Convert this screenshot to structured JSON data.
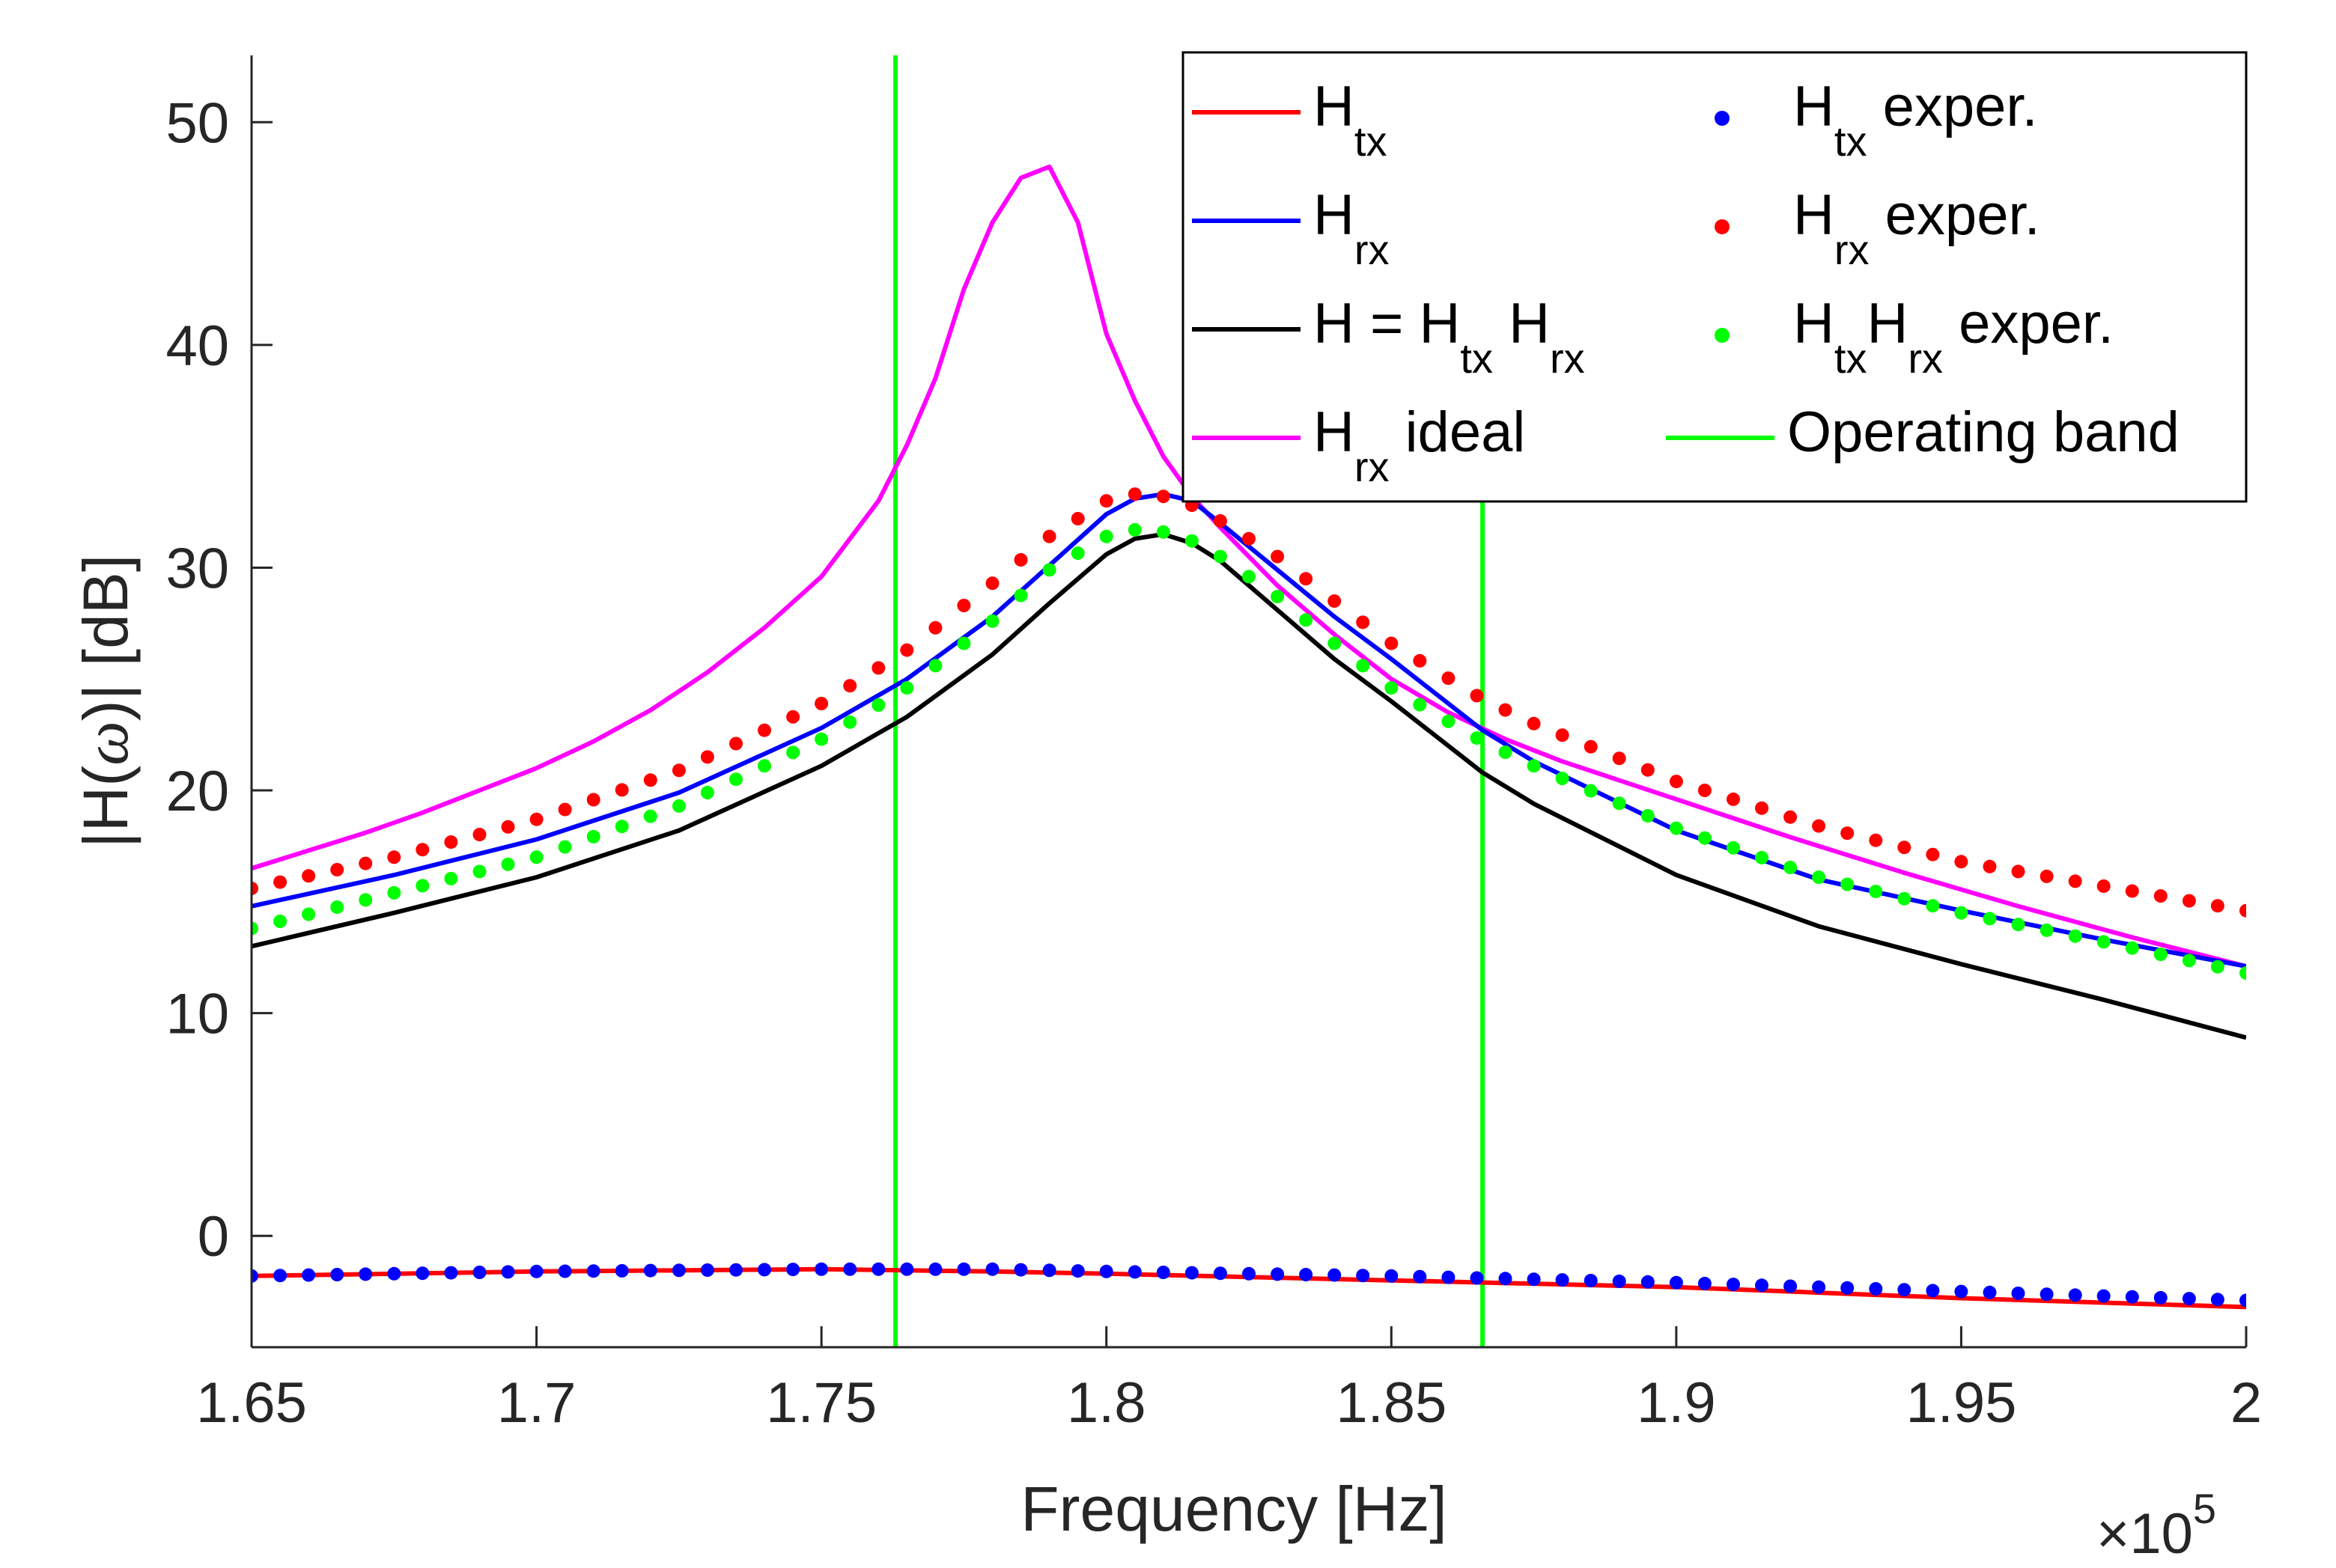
{
  "chart_data": {
    "type": "line",
    "title": "",
    "xlabel": "Frequency [Hz]",
    "ylabel_parts": [
      "|H(",
      "ω",
      ")| [dB]"
    ],
    "x_multiplier": {
      "base": "×10",
      "exponent": "5"
    },
    "xlim": [
      1.65,
      2.0
    ],
    "ylim": [
      -5,
      53
    ],
    "x_ticks": [
      1.65,
      1.7,
      1.75,
      1.8,
      1.85,
      1.9,
      1.95,
      2.0
    ],
    "x_tick_labels": [
      "1.65",
      "1.7",
      "1.75",
      "1.8",
      "1.85",
      "1.9",
      "1.95",
      "2"
    ],
    "y_ticks": [
      0,
      10,
      20,
      30,
      40,
      50
    ],
    "y_tick_labels": [
      "0",
      "10",
      "20",
      "30",
      "40",
      "50"
    ],
    "grid": false,
    "legend_position": "top-right",
    "operating_band": [
      1.763,
      1.866
    ],
    "legend": [
      {
        "key": "htx",
        "sym": "line",
        "color": "#ff0000",
        "base": "H",
        "sub": "tx",
        "suffix": ""
      },
      {
        "key": "htx_exp",
        "sym": "dot",
        "color": "#0000ff",
        "base": "H",
        "sub": "tx",
        "suffix": " exper."
      },
      {
        "key": "hrx",
        "sym": "line",
        "color": "#0000ff",
        "base": "H",
        "sub": "rx",
        "suffix": ""
      },
      {
        "key": "hrx_exp",
        "sym": "dot",
        "color": "#ff0000",
        "base": "H",
        "sub": "rx",
        "suffix": " exper."
      },
      {
        "key": "h",
        "sym": "line",
        "color": "#000000",
        "base": "H = H",
        "sub": "tx",
        "mid": " H",
        "sub2": "rx",
        "suffix": ""
      },
      {
        "key": "h_exp",
        "sym": "dot",
        "color": "#00ff00",
        "base": "H",
        "sub": "tx",
        "mid": "H",
        "sub2": "rx",
        "suffix": " exper."
      },
      {
        "key": "hrx_ideal",
        "sym": "line",
        "color": "#ff00ff",
        "base": "H",
        "sub": "rx",
        "suffix": " ideal"
      },
      {
        "key": "band",
        "sym": "line",
        "color": "#00ff00",
        "base": "Operating band",
        "sub": "",
        "suffix": ""
      }
    ],
    "line_series": [
      {
        "name": "Hrx ideal",
        "color": "#ff00ff",
        "x": [
          1.65,
          1.66,
          1.67,
          1.68,
          1.69,
          1.7,
          1.71,
          1.72,
          1.73,
          1.74,
          1.75,
          1.76,
          1.765,
          1.77,
          1.775,
          1.78,
          1.785,
          1.79,
          1.795,
          1.8,
          1.805,
          1.81,
          1.815,
          1.82,
          1.83,
          1.84,
          1.85,
          1.86,
          1.87,
          1.88,
          1.9,
          1.92,
          1.94,
          1.96,
          1.98,
          2.0
        ],
        "y": [
          16.5,
          17.3,
          18.1,
          19.0,
          20.0,
          21.0,
          22.2,
          23.6,
          25.3,
          27.3,
          29.6,
          33.0,
          35.5,
          38.5,
          42.5,
          45.5,
          47.5,
          48.0,
          45.5,
          40.5,
          37.5,
          35.0,
          33.2,
          31.8,
          29.2,
          27.0,
          25.0,
          23.5,
          22.3,
          21.3,
          19.6,
          17.9,
          16.3,
          14.8,
          13.4,
          12.1
        ]
      },
      {
        "name": "Hrx",
        "color": "#0000ff",
        "x": [
          1.65,
          1.675,
          1.7,
          1.725,
          1.75,
          1.765,
          1.78,
          1.79,
          1.8,
          1.805,
          1.81,
          1.815,
          1.82,
          1.83,
          1.84,
          1.85,
          1.866,
          1.875,
          1.9,
          1.925,
          1.95,
          1.975,
          2.0
        ],
        "y": [
          14.8,
          16.2,
          17.8,
          19.9,
          22.8,
          25.0,
          27.8,
          30.1,
          32.4,
          33.1,
          33.3,
          33.0,
          32.0,
          29.9,
          27.8,
          25.9,
          22.7,
          21.3,
          18.2,
          16.0,
          14.6,
          13.3,
          12.1
        ]
      },
      {
        "name": "H = Htx Hrx",
        "color": "#000000",
        "x": [
          1.65,
          1.675,
          1.7,
          1.725,
          1.75,
          1.765,
          1.78,
          1.79,
          1.8,
          1.805,
          1.81,
          1.815,
          1.82,
          1.83,
          1.84,
          1.85,
          1.866,
          1.875,
          1.9,
          1.925,
          1.95,
          1.975,
          2.0
        ],
        "y": [
          13.0,
          14.5,
          16.1,
          18.2,
          21.1,
          23.3,
          26.1,
          28.4,
          30.6,
          31.3,
          31.5,
          31.1,
          30.3,
          28.1,
          25.9,
          24.0,
          20.8,
          19.4,
          16.2,
          13.9,
          12.2,
          10.6,
          8.9
        ]
      },
      {
        "name": "Htx",
        "color": "#ff0000",
        "x": [
          1.65,
          1.7,
          1.75,
          1.78,
          1.8,
          1.85,
          1.9,
          1.95,
          2.0
        ],
        "y": [
          -1.8,
          -1.6,
          -1.5,
          -1.6,
          -1.7,
          -2.0,
          -2.3,
          -2.8,
          -3.2
        ]
      }
    ],
    "dot_series": [
      {
        "name": "Htx exper.",
        "color": "#0000ff",
        "x": [
          1.65,
          1.7,
          1.75,
          1.78,
          1.8,
          1.85,
          1.9,
          1.95,
          2.0
        ],
        "y": [
          -1.8,
          -1.6,
          -1.5,
          -1.5,
          -1.6,
          -1.8,
          -2.1,
          -2.5,
          -2.9
        ]
      },
      {
        "name": "Hrx exper.",
        "color": "#ff0000",
        "x": [
          1.65,
          1.675,
          1.7,
          1.725,
          1.75,
          1.765,
          1.78,
          1.79,
          1.8,
          1.805,
          1.81,
          1.815,
          1.82,
          1.83,
          1.84,
          1.85,
          1.866,
          1.875,
          1.9,
          1.925,
          1.95,
          1.975,
          2.0
        ],
        "y": [
          15.6,
          17.0,
          18.7,
          20.9,
          23.9,
          26.3,
          29.3,
          31.4,
          33.0,
          33.3,
          33.2,
          32.8,
          32.1,
          30.5,
          28.5,
          26.6,
          24.1,
          23.0,
          20.4,
          18.4,
          16.8,
          15.7,
          14.6
        ]
      },
      {
        "name": "HtxHrx exper.",
        "color": "#00ff00",
        "x": [
          1.65,
          1.675,
          1.7,
          1.725,
          1.75,
          1.765,
          1.78,
          1.79,
          1.8,
          1.805,
          1.81,
          1.815,
          1.82,
          1.83,
          1.84,
          1.85,
          1.866,
          1.875,
          1.9,
          1.925,
          1.95,
          1.975,
          2.0
        ],
        "y": [
          13.8,
          15.4,
          17.0,
          19.3,
          22.3,
          24.6,
          27.6,
          29.9,
          31.4,
          31.7,
          31.6,
          31.2,
          30.5,
          28.7,
          26.6,
          24.6,
          22.2,
          21.1,
          18.3,
          16.1,
          14.5,
          13.2,
          11.8
        ]
      }
    ]
  }
}
